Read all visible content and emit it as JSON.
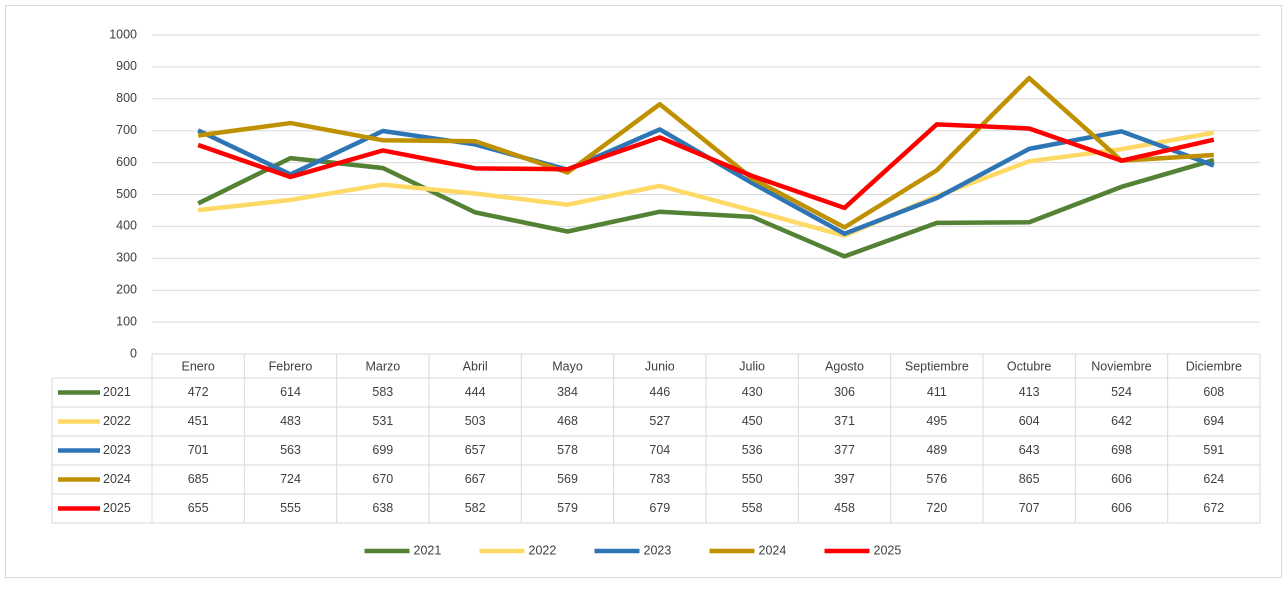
{
  "chart_data": {
    "type": "line",
    "categories": [
      "Enero",
      "Febrero",
      "Marzo",
      "Abril",
      "Mayo",
      "Junio",
      "Julio",
      "Agosto",
      "Septiembre",
      "Octubre",
      "Noviembre",
      "Diciembre"
    ],
    "series": [
      {
        "name": "2021",
        "color": "#548235",
        "values": [
          472,
          614,
          583,
          444,
          384,
          446,
          430,
          306,
          411,
          413,
          524,
          608
        ]
      },
      {
        "name": "2022",
        "color": "#ffd966",
        "values": [
          451,
          483,
          531,
          503,
          468,
          527,
          450,
          371,
          495,
          604,
          642,
          694
        ]
      },
      {
        "name": "2023",
        "color": "#2e75b6",
        "values": [
          701,
          563,
          699,
          657,
          578,
          704,
          536,
          377,
          489,
          643,
          698,
          591
        ]
      },
      {
        "name": "2024",
        "color": "#bf9000",
        "values": [
          685,
          724,
          670,
          667,
          569,
          783,
          550,
          397,
          576,
          865,
          606,
          624
        ]
      },
      {
        "name": "2025",
        "color": "#ff0000",
        "values": [
          655,
          555,
          638,
          582,
          579,
          679,
          558,
          458,
          720,
          707,
          606,
          672
        ]
      }
    ],
    "ylim": [
      0,
      1000
    ],
    "yticks": [
      0,
      100,
      200,
      300,
      400,
      500,
      600,
      700,
      800,
      900,
      1000
    ],
    "grid": true,
    "data_table": true,
    "legend": "bottom"
  }
}
